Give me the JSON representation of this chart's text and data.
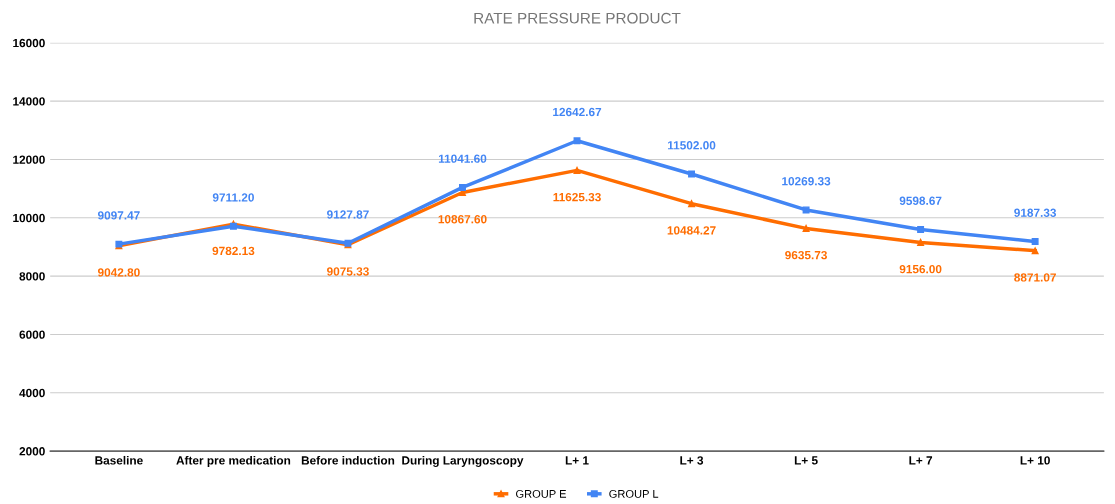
{
  "chart_data": {
    "type": "line",
    "title": "RATE PRESSURE PRODUCT",
    "categories": [
      "Baseline",
      "After pre medication",
      "Before induction",
      "During Laryngoscopy",
      "L+ 1",
      "L+ 3",
      "L+ 5",
      "L+ 7",
      "L+ 10"
    ],
    "series": [
      {
        "name": "GROUP E",
        "color": "#ff6d01",
        "marker": "triangle",
        "values": [
          9042.8,
          9782.13,
          9075.33,
          10867.6,
          11625.33,
          10484.27,
          9635.73,
          9156.0,
          8871.07
        ],
        "value_labels": [
          "9042.80",
          "9782.13",
          "9075.33",
          "10867.60",
          "11625.33",
          "10484.27",
          "9635.73",
          "9156.00",
          "8871.07"
        ]
      },
      {
        "name": "GROUP L",
        "color": "#4285f4",
        "marker": "square",
        "values": [
          9097.47,
          9711.2,
          9127.87,
          11041.6,
          12642.67,
          11502.0,
          10269.33,
          9598.67,
          9187.33
        ],
        "value_labels": [
          "9097.47",
          "9711.20",
          "9127.87",
          "11041.60",
          "12642.67",
          "11502.00",
          "10269.33",
          "9598.67",
          "9187.33"
        ]
      }
    ],
    "ylim": [
      2000,
      16000
    ],
    "yticks": [
      2000,
      4000,
      6000,
      8000,
      10000,
      12000,
      14000,
      16000
    ],
    "grid": "y",
    "legend": "bottom",
    "line_style": "solid"
  }
}
